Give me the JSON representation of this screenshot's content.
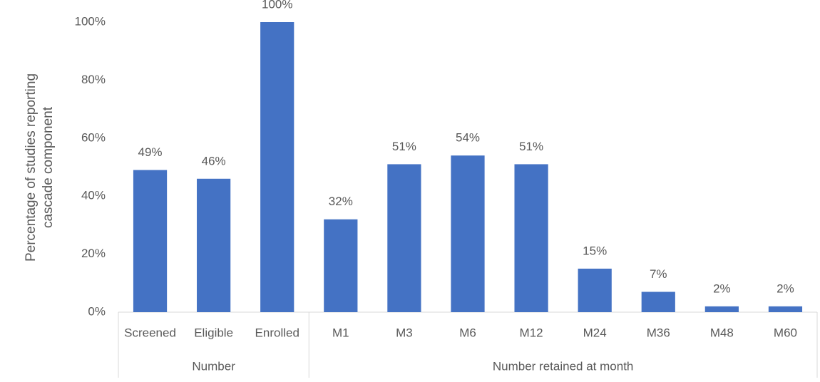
{
  "chart_data": {
    "type": "bar",
    "ylabel": [
      "Percentage of studies reporting",
      "cascade component"
    ],
    "groups": [
      {
        "name": "Number",
        "categories": [
          "Screened",
          "Eligible",
          "Enrolled"
        ],
        "values": [
          49,
          46,
          100
        ],
        "value_labels": [
          "49%",
          "46%",
          "100%"
        ]
      },
      {
        "name": "Number retained at month",
        "categories": [
          "M1",
          "M3",
          "M6",
          "M12",
          "M24",
          "M36",
          "M48",
          "M60"
        ],
        "values": [
          32,
          51,
          54,
          51,
          15,
          7,
          2,
          2
        ],
        "value_labels": [
          "32%",
          "51%",
          "54%",
          "51%",
          "15%",
          "7%",
          "2%",
          "2%"
        ]
      }
    ],
    "color": "#4472c4",
    "ylim": [
      0,
      100
    ],
    "yticks": [
      {
        "value": 0,
        "label": "0%"
      },
      {
        "value": 20,
        "label": "20%"
      },
      {
        "value": 40,
        "label": "40%"
      },
      {
        "value": 60,
        "label": "60%"
      },
      {
        "value": 80,
        "label": "80%"
      },
      {
        "value": 100,
        "label": "100%"
      }
    ],
    "grid": false
  }
}
